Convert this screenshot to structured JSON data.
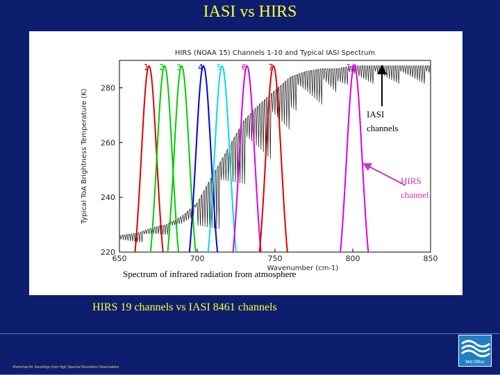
{
  "slide": {
    "title": "IASI vs HIRS",
    "subtitle": "HIRS 19 channels vs IASI 8461 channels",
    "footer_text": "Workshop for Soundings from High Spectral Resolution Observations",
    "logo_text": "Met Office"
  },
  "annotations": {
    "iasi_line1": "IASI",
    "iasi_line2": "channels",
    "hirs_line1": "HIRS",
    "hirs_line2": "channel",
    "caption": "Spectrum of infrared radiation from atmosphere"
  },
  "chart_data": {
    "type": "line",
    "title": "HIRS (NOAA 15) Channels 1-10 and Typical IASI Spectrum",
    "xlabel": "Wavenumber (cm-1)",
    "ylabel": "Typical ToA Brightness Temperature (K)",
    "xlim": [
      650,
      850
    ],
    "ylim": [
      220,
      290
    ],
    "xticks": [
      650,
      700,
      750,
      800,
      850
    ],
    "yticks": [
      220,
      240,
      260,
      280
    ],
    "grid": false,
    "channels": [
      {
        "label": "1",
        "center": 669,
        "color": "#dd0000"
      },
      {
        "label": "2",
        "center": 679,
        "color": "#00cc00"
      },
      {
        "label": "3",
        "center": 690,
        "color": "#00cc00"
      },
      {
        "label": "4",
        "center": 704,
        "color": "#0000dd"
      },
      {
        "label": "5",
        "center": 716,
        "color": "#00dddd"
      },
      {
        "label": "6",
        "center": 732,
        "color": "#dd00dd"
      },
      {
        "label": "7",
        "center": 749,
        "color": "#dd0000"
      },
      {
        "label": "10",
        "center": 801,
        "color": "#dd00dd"
      }
    ],
    "spectrum_envelope": [
      [
        650,
        226
      ],
      [
        662,
        227
      ],
      [
        672,
        229
      ],
      [
        680,
        230
      ],
      [
        690,
        233
      ],
      [
        700,
        238
      ],
      [
        710,
        248
      ],
      [
        720,
        258
      ],
      [
        730,
        268
      ],
      [
        740,
        274
      ],
      [
        750,
        279
      ],
      [
        760,
        284
      ],
      [
        770,
        286
      ],
      [
        780,
        287
      ],
      [
        790,
        287
      ],
      [
        800,
        288
      ],
      [
        810,
        288
      ],
      [
        820,
        288
      ],
      [
        830,
        288
      ],
      [
        840,
        288
      ],
      [
        850,
        288
      ]
    ]
  },
  "colors": {
    "background": "#0d1e6e",
    "title": "#ffff33",
    "hirs_annotation": "#cc33cc"
  }
}
